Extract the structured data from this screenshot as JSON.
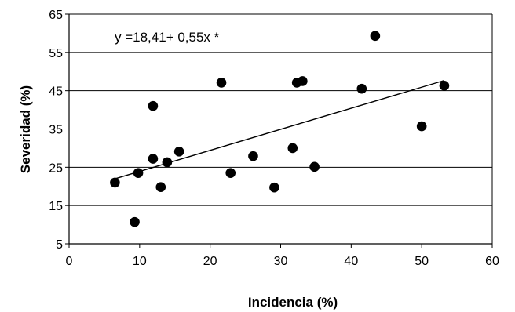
{
  "chart_data": {
    "type": "scatter",
    "xlabel": "Incidencia (%)",
    "ylabel": "Severidad (%)",
    "xlim": [
      0,
      60
    ],
    "ylim": [
      5,
      65
    ],
    "xticks": [
      0,
      10,
      20,
      30,
      40,
      50,
      60
    ],
    "yticks": [
      5,
      15,
      25,
      35,
      45,
      55,
      65
    ],
    "grid": "horizontal",
    "annotation": "y =18,41+ 0,55x *",
    "trendline": {
      "intercept": 18.41,
      "slope": 0.55,
      "x_range": [
        6.5,
        53.2
      ]
    },
    "points": [
      {
        "x": 6.5,
        "y": 21.0
      },
      {
        "x": 9.3,
        "y": 10.7
      },
      {
        "x": 9.8,
        "y": 23.5
      },
      {
        "x": 11.9,
        "y": 41.0
      },
      {
        "x": 11.9,
        "y": 27.2
      },
      {
        "x": 13.0,
        "y": 19.8
      },
      {
        "x": 13.9,
        "y": 26.3
      },
      {
        "x": 15.6,
        "y": 29.1
      },
      {
        "x": 21.6,
        "y": 47.1
      },
      {
        "x": 22.9,
        "y": 23.5
      },
      {
        "x": 26.1,
        "y": 27.9
      },
      {
        "x": 29.1,
        "y": 19.7
      },
      {
        "x": 31.7,
        "y": 30.0
      },
      {
        "x": 32.3,
        "y": 47.1
      },
      {
        "x": 33.1,
        "y": 47.5
      },
      {
        "x": 34.8,
        "y": 25.1
      },
      {
        "x": 41.5,
        "y": 45.5
      },
      {
        "x": 43.4,
        "y": 59.3
      },
      {
        "x": 50.0,
        "y": 35.7
      },
      {
        "x": 53.2,
        "y": 46.3
      }
    ]
  }
}
